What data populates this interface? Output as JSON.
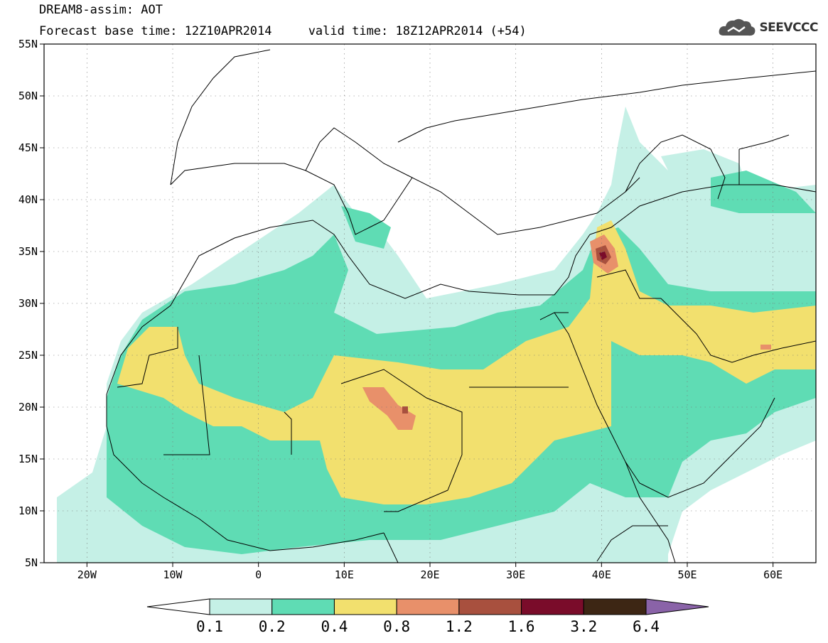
{
  "header": {
    "title_line1": "DREAM8-assim: AOT",
    "title_line2": "Forecast base time: 12Z10APR2014     valid time: 18Z12APR2014 (+54)",
    "logo_text": "SEEVCCC"
  },
  "map": {
    "lon_range": [
      -25,
      65
    ],
    "lat_range": [
      5,
      55
    ],
    "lat_ticks": [
      {
        "value": 5,
        "label": "5N"
      },
      {
        "value": 10,
        "label": "10N"
      },
      {
        "value": 15,
        "label": "15N"
      },
      {
        "value": 20,
        "label": "20N"
      },
      {
        "value": 25,
        "label": "25N"
      },
      {
        "value": 30,
        "label": "30N"
      },
      {
        "value": 35,
        "label": "35N"
      },
      {
        "value": 40,
        "label": "40N"
      },
      {
        "value": 45,
        "label": "45N"
      },
      {
        "value": 50,
        "label": "50N"
      },
      {
        "value": 55,
        "label": "55N"
      }
    ],
    "lon_ticks": [
      {
        "value": -20,
        "label": "20W"
      },
      {
        "value": -10,
        "label": "10W"
      },
      {
        "value": 0,
        "label": "0"
      },
      {
        "value": 10,
        "label": "10E"
      },
      {
        "value": 20,
        "label": "20E"
      },
      {
        "value": 30,
        "label": "30E"
      },
      {
        "value": 40,
        "label": "40E"
      },
      {
        "value": 50,
        "label": "50E"
      },
      {
        "value": 60,
        "label": "60E"
      }
    ],
    "grid": "dotted"
  },
  "colorbar": {
    "labels": [
      "0.1",
      "0.2",
      "0.4",
      "0.8",
      "1.2",
      "1.6",
      "3.2",
      "6.4"
    ],
    "colors": [
      "#ffffff",
      "#c5f0e6",
      "#5fdcb4",
      "#f2e06e",
      "#e8906a",
      "#a8503e",
      "#7a0c2a",
      "#3d2614",
      "#8a63a8"
    ]
  },
  "colors": {
    "c01": "#c5f0e6",
    "c02": "#5fdcb4",
    "c04": "#f2e06e",
    "c08": "#e8906a",
    "c12": "#a8503e",
    "c16": "#7a0c2a"
  }
}
